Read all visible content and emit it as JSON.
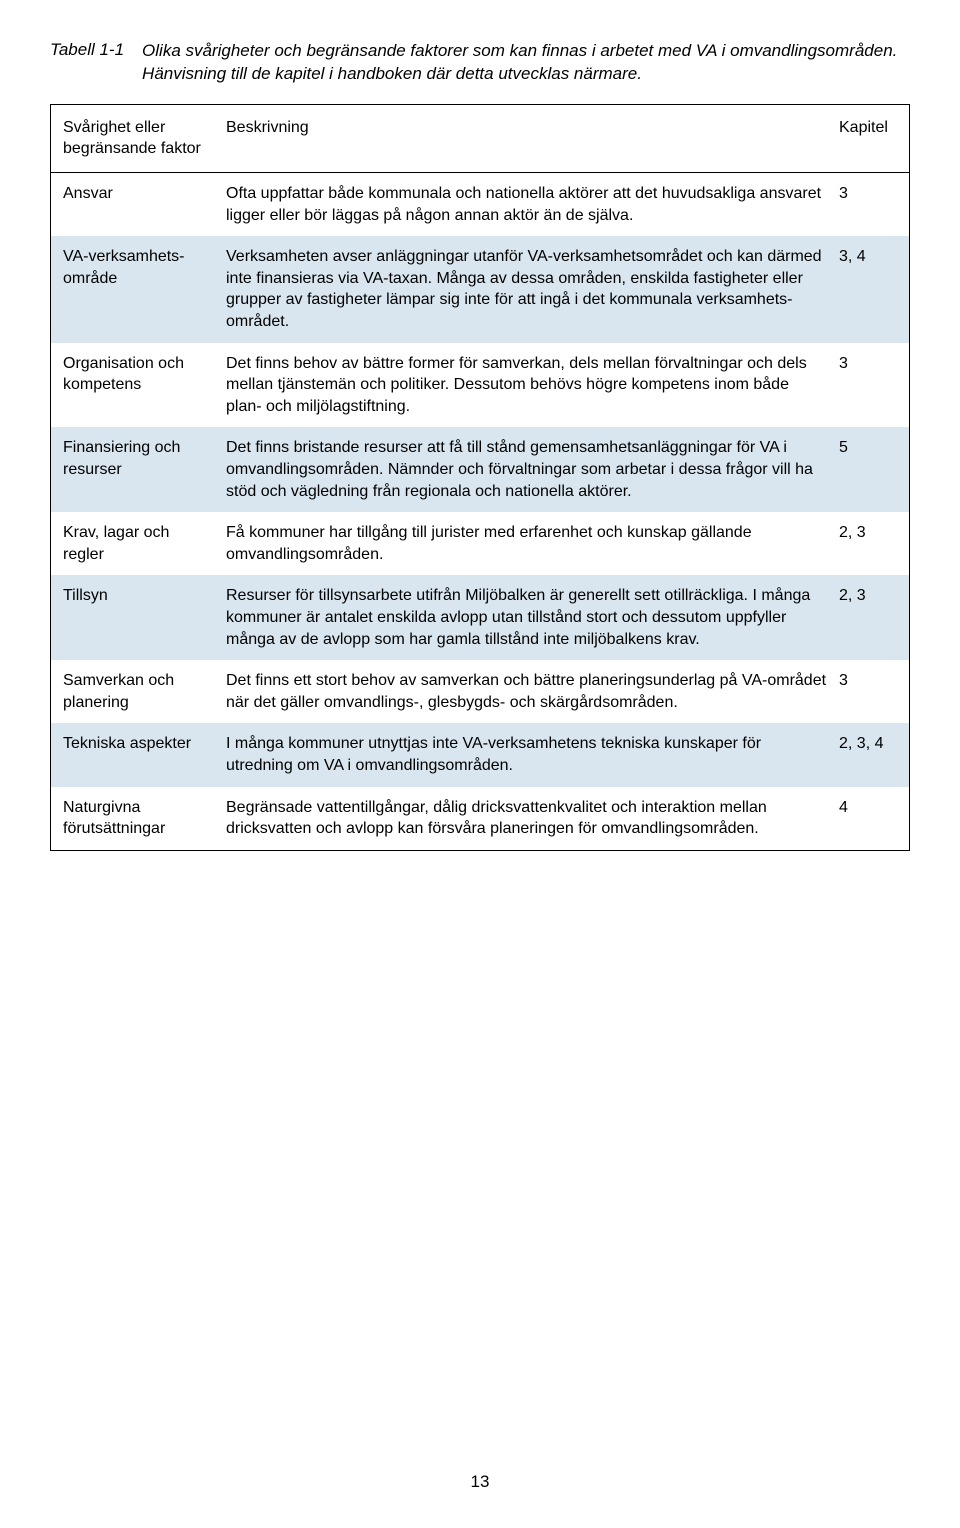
{
  "caption": {
    "label": "Tabell 1-1",
    "text": "Olika svårigheter och begränsande faktorer som kan finnas i arbetet med VA i omvandlingsområden. Hänvisning till de kapitel i handboken där detta utvecklas närmare."
  },
  "table": {
    "headers": {
      "factor": "Svårighet eller begränsande faktor",
      "desc": "Beskrivning",
      "kap": "Kapitel"
    },
    "rows": [
      {
        "factor": "Ansvar",
        "desc": "Ofta uppfattar både kommunala och nationella aktörer att det huvudsakliga ansvaret ligger eller bör läggas på någon annan aktör än de själva.",
        "kap": "3",
        "shaded": false
      },
      {
        "factor": "VA-verksamhets-område",
        "desc": "Verksamheten avser anläggningar utanför VA-verksamhetsområdet och kan därmed inte finansieras via VA-taxan. Många av dessa områden, enskilda fastigheter eller grupper av fastigheter lämpar sig inte för att ingå i det kommunala verksamhets-området.",
        "kap": "3, 4",
        "shaded": true
      },
      {
        "factor": "Organisation och kompetens",
        "desc": "Det finns behov av bättre former för samverkan, dels mellan förvaltningar och dels mellan tjänstemän och politiker. Dessutom behövs högre kompetens inom både plan- och miljölagstiftning.",
        "kap": "3",
        "shaded": false
      },
      {
        "factor": "Finansiering och resurser",
        "desc": "Det finns bristande resurser att få till stånd gemensamhetsanläggningar för VA i omvandlingsområden. Nämnder och förvaltningar som arbetar i dessa frågor vill ha stöd och vägledning från regionala och nationella aktörer.",
        "kap": "5",
        "shaded": true
      },
      {
        "factor": "Krav, lagar och regler",
        "desc": "Få kommuner har tillgång till jurister med erfarenhet och kunskap gällande omvandlingsområden.",
        "kap": "2, 3",
        "shaded": false
      },
      {
        "factor": "Tillsyn",
        "desc": "Resurser för tillsynsarbete utifrån Miljöbalken är generellt sett otillräckliga. I många kommuner är antalet enskilda avlopp utan tillstånd stort och dessutom uppfyller många av de avlopp som har gamla tillstånd inte miljöbalkens krav.",
        "kap": "2, 3",
        "shaded": true
      },
      {
        "factor": "Samverkan och planering",
        "desc": "Det finns ett stort behov av samverkan och bättre planeringsunderlag på VA-området när det gäller omvandlings-, glesbygds- och skärgårdsområden.",
        "kap": "3",
        "shaded": false
      },
      {
        "factor": "Tekniska aspekter",
        "desc": "I många kommuner utnyttjas inte VA-verksamhetens tekniska kunskaper för utredning om VA i omvandlingsområden.",
        "kap": "2, 3, 4",
        "shaded": true
      },
      {
        "factor": "Naturgivna förutsättningar",
        "desc": "Begränsade vattentillgångar, dålig dricksvattenkvalitet och interaktion mellan dricksvatten och avlopp kan försvåra planeringen för omvandlingsområden.",
        "kap": "4",
        "shaded": false
      }
    ]
  },
  "page_number": "13",
  "colors": {
    "shaded_bg": "#d9e6ef",
    "border": "#000000",
    "text": "#000000",
    "page_bg": "#ffffff"
  }
}
